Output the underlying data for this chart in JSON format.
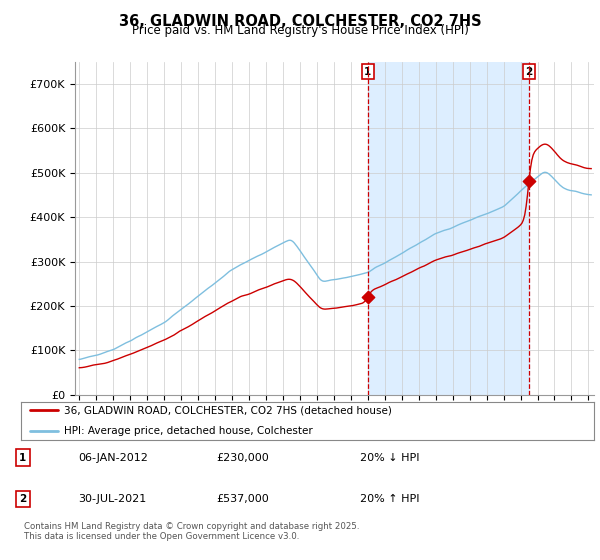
{
  "title": "36, GLADWIN ROAD, COLCHESTER, CO2 7HS",
  "subtitle": "Price paid vs. HM Land Registry's House Price Index (HPI)",
  "transaction1_date": "06-JAN-2012",
  "transaction1_price": 230000,
  "transaction1_label": "20% ↓ HPI",
  "transaction2_date": "30-JUL-2021",
  "transaction2_price": 537000,
  "transaction2_label": "20% ↑ HPI",
  "legend_line1": "36, GLADWIN ROAD, COLCHESTER, CO2 7HS (detached house)",
  "legend_line2": "HPI: Average price, detached house, Colchester",
  "footer": "Contains HM Land Registry data © Crown copyright and database right 2025.\nThis data is licensed under the Open Government Licence v3.0.",
  "hpi_color": "#7fbfdf",
  "price_color": "#cc0000",
  "shade_color": "#ddeeff",
  "marker_color": "#cc0000",
  "ylim": [
    0,
    750000
  ],
  "yticks": [
    0,
    100000,
    200000,
    300000,
    400000,
    500000,
    600000,
    700000
  ],
  "background_color": "#ffffff",
  "grid_color": "#cccccc"
}
